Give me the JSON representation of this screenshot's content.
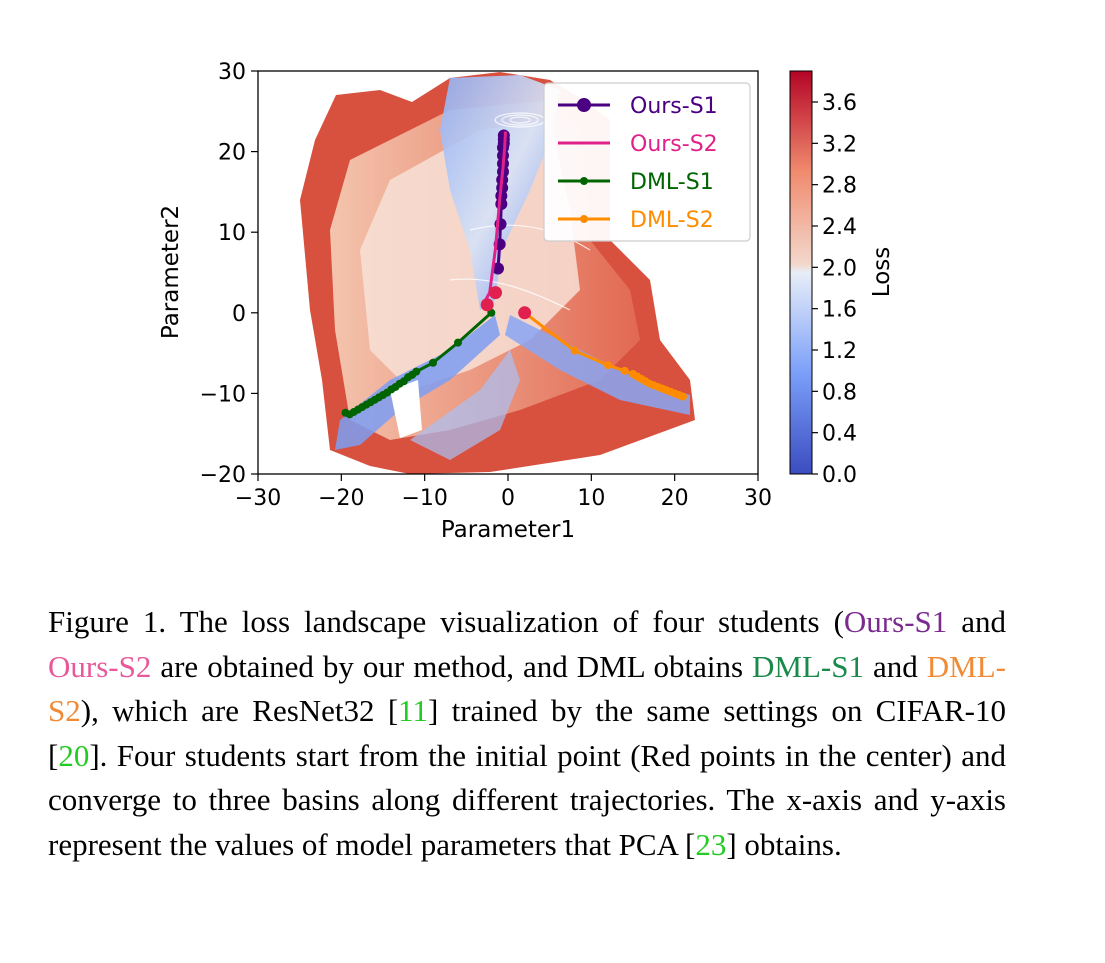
{
  "chart_data": {
    "type": "line",
    "xlabel": "Parameter1",
    "ylabel": "Parameter2",
    "colorbar_label": "Loss",
    "xlim": [
      -30,
      30
    ],
    "ylim": [
      -20,
      30
    ],
    "x_ticks": [
      -30,
      -20,
      -10,
      0,
      10,
      20,
      30
    ],
    "y_ticks": [
      -20,
      -10,
      0,
      10,
      20,
      30
    ],
    "colorbar_ticks": [
      0.0,
      0.4,
      0.8,
      1.2,
      1.6,
      2.0,
      2.4,
      2.8,
      3.2,
      3.6
    ],
    "colorbar_range": [
      0.0,
      3.9
    ],
    "colormap": "coolwarm",
    "legend_position": "upper-right",
    "series": [
      {
        "name": "Ours-S1",
        "color": "#4b0082",
        "marker_radius": "large",
        "x": [
          -1.2,
          -1.0,
          -0.9,
          -0.8,
          -0.8,
          -0.7,
          -0.7,
          -0.6,
          -0.6,
          -0.6,
          -0.6,
          -0.5,
          -0.5,
          -0.5
        ],
        "y": [
          5.5,
          8.5,
          11.0,
          13.5,
          14.5,
          15.5,
          16.5,
          17.5,
          18.5,
          19.5,
          20.5,
          21.0,
          21.5,
          22.0
        ]
      },
      {
        "name": "Ours-S2",
        "color": "#e0218a",
        "x": [
          -3.0,
          -2.2,
          -1.5,
          -1.0,
          -0.6,
          -0.4,
          -0.3
        ],
        "y": [
          1.0,
          2.5,
          8.0,
          14.0,
          18.0,
          20.5,
          22.5
        ]
      },
      {
        "name": "DML-S1",
        "color": "#006400",
        "x": [
          -2.0,
          -6.0,
          -9.0,
          -11.0,
          -11.5,
          -12.0,
          -12.5,
          -13.0,
          -13.5,
          -14.0,
          -14.5,
          -15.0,
          -15.5,
          -16.0,
          -16.5,
          -17.0,
          -17.5,
          -18.0,
          -18.5,
          -19.0,
          -19.5
        ],
        "y": [
          0.0,
          -3.7,
          -6.2,
          -7.3,
          -7.7,
          -8.0,
          -8.5,
          -8.8,
          -9.2,
          -9.5,
          -9.9,
          -10.2,
          -10.5,
          -10.8,
          -11.1,
          -11.4,
          -11.7,
          -12.0,
          -12.3,
          -12.6,
          -12.4
        ]
      },
      {
        "name": "DML-S2",
        "color": "#ff8c00",
        "x": [
          2.0,
          8.0,
          12.0,
          14.0,
          15.0,
          15.5,
          16.0,
          16.5,
          17.0,
          17.5,
          18.0,
          18.5,
          19.0,
          19.5,
          20.0,
          20.5,
          21.0
        ],
        "y": [
          0.0,
          -4.7,
          -6.5,
          -7.2,
          -7.6,
          -7.9,
          -8.2,
          -8.5,
          -8.8,
          -9.0,
          -9.2,
          -9.4,
          -9.6,
          -9.8,
          -10.0,
          -10.2,
          -10.4
        ]
      }
    ],
    "initial_points": {
      "color": "#e0214f",
      "x": [
        2.0,
        -2.5,
        -1.5
      ],
      "y": [
        0.0,
        1.0,
        2.5
      ]
    }
  },
  "caption": {
    "figure_label": "Figure 1.",
    "text_1": " The loss landscape visualization of four students (",
    "ours_s1": "Ours-S1",
    "text_2": " and ",
    "ours_s2": "Ours-S2",
    "text_3": " are obtained by our method, and DML obtains ",
    "dml_s1": "DML-S1",
    "text_4": " and ",
    "dml_s2": "DML-S2",
    "text_5": "), which are ResNet32 [",
    "cite_resnet": "11",
    "text_6": "] trained by the same settings on CIFAR-10 [",
    "cite_cifar": "20",
    "text_7": "]. Four students start from the initial point (Red points in the center) and converge to three basins along different trajectories. The x-axis and y-axis represent the values of model parameters that PCA [",
    "cite_pca": "23",
    "text_8": "] obtains.",
    "colors": {
      "purple": "#7b2b8f",
      "pink": "#e8589a",
      "green": "#1a8a4a",
      "orange": "#f08a35",
      "cite": "#22cc22"
    }
  }
}
